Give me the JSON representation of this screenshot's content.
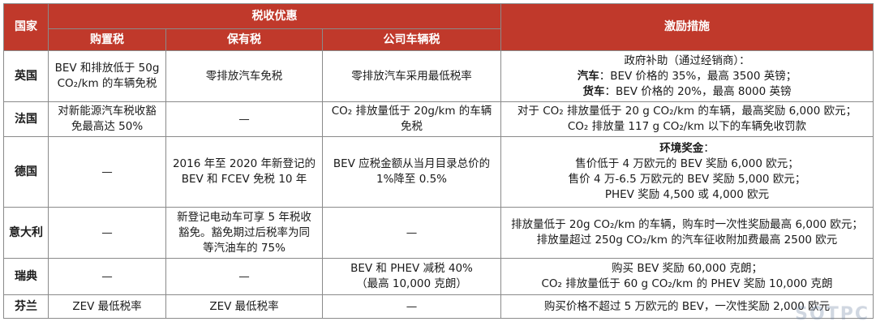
{
  "header": {
    "country": "国家",
    "tax_group": "税收优惠",
    "incentives": "激励措施",
    "purchase_tax": "购置税",
    "holding_tax": "保有税",
    "company_car_tax": "公司车辆税"
  },
  "rows": {
    "uk": {
      "country": "英国",
      "purchase": [
        "BEV 和排放低于 50g",
        "CO₂/km 的车辆免税"
      ],
      "holding": "零排放汽车免税",
      "company": "零排放汽车采用最低税率",
      "incentive": {
        "line1": "政府补助（通过经销商）：",
        "line2_label": "汽车",
        "line2_text": "：BEV 价格的 35%，最高 3500 英镑；",
        "line3_label": "货车",
        "line3_text": "：BEV 价格的 20%，最高 8000 英镑"
      }
    },
    "fr": {
      "country": "法国",
      "purchase": [
        "对新能源汽车税收豁",
        "免最高达 50%"
      ],
      "holding": "—",
      "company": [
        "CO₂ 排放量低于 20g/km 的车辆",
        "免税"
      ],
      "incentive": [
        "对于 CO₂ 排放量低于 20 g CO₂/km 的车辆，最高奖励 6,000 欧元；",
        "CO₂ 排放量 117 g CO₂/km 以下的车辆免收罚款"
      ]
    },
    "de": {
      "country": "德国",
      "purchase": "—",
      "holding": [
        "2016 年至 2020 年新登记的",
        "BEV 和 FCEV 免税 10 年"
      ],
      "company": [
        "BEV 应税金额从当月目录总价的",
        "1%降至 0.5%"
      ],
      "incentive": {
        "title": "环境奖金",
        "colon": "：",
        "lines": [
          "售价低于 4 万欧元的 BEV 奖励 6,000 欧元；",
          "售价 4 万-6.5 万欧元的 BEV 奖励 5,000 欧元；",
          "PHEV 奖励 4,500 或 4,000 欧元"
        ]
      }
    },
    "it": {
      "country": "意大利",
      "purchase": "—",
      "holding": [
        "新登记电动车可享 5 年税收",
        "豁免。豁免期过后税率为同",
        "等汽油车的 75%"
      ],
      "company": "—",
      "incentive": [
        "排放量低于 20g CO₂/km 的车辆，购车时一次性奖励最高 6,000 欧元；",
        "排放量超过 250g CO₂/km 的汽车征收附加费最高 2500 欧元"
      ]
    },
    "se": {
      "country": "瑞典",
      "purchase": "—",
      "holding": "—",
      "company": [
        "BEV 和 PHEV 减税 40%",
        "（最高 10,000 克朗）"
      ],
      "incentive": [
        "购买 BEV 奖励 60,000 克朗；",
        "CO₂ 排放量低于 60 g CO₂/km 的 PHEV 奖励 10,000 克朗"
      ]
    },
    "fi": {
      "country": "芬兰",
      "purchase": "ZEV 最低税率",
      "holding": "ZEV 最低税率",
      "company": "—",
      "incentive": "购买价格不超过 5 万欧元的 BEV，一次性奖励 2,000 欧元"
    }
  },
  "watermark": "SOTPC",
  "colors": {
    "header_bg": "#c0392b",
    "header_text": "#ffffff",
    "border": "#8a8a8a"
  }
}
